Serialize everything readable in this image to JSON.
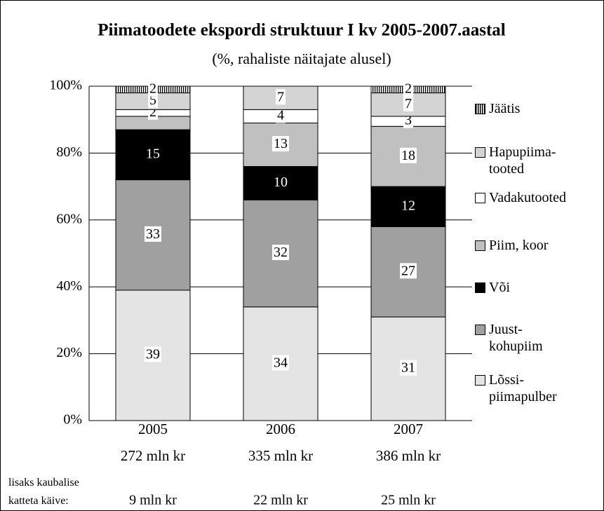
{
  "chart_data": {
    "type": "stacked-bar",
    "title": "Piimatoodete ekspordi struktuur I kv 2005-2007.aastal",
    "subtitle": "(%, rahaliste näitajate alusel)",
    "categories": [
      "2005",
      "2006",
      "2007"
    ],
    "category_sublabels": [
      "272 mln kr",
      "335 mln kr",
      "386 mln kr"
    ],
    "extra_label": "lisaks kaubalise\nkatteta käive:",
    "extra_values": [
      "9 mln kr",
      "22 mln kr",
      "25 mln kr"
    ],
    "ylim": [
      0,
      100
    ],
    "yticks": [
      {
        "value": 0,
        "label": "0%"
      },
      {
        "value": 20,
        "label": "20%"
      },
      {
        "value": 40,
        "label": "40%"
      },
      {
        "value": 60,
        "label": "60%"
      },
      {
        "value": 80,
        "label": "80%"
      },
      {
        "value": 100,
        "label": "100%"
      }
    ],
    "grid": true,
    "series": [
      {
        "name": "Lõssi-\npiimapulber",
        "color": "#e4e4e4",
        "values": [
          39,
          34,
          31
        ]
      },
      {
        "name": "Juust-\nkohupiim",
        "color": "#a0a0a0",
        "values": [
          33,
          32,
          27
        ]
      },
      {
        "name": "Või",
        "color": "#000000",
        "values": [
          15,
          10,
          12
        ]
      },
      {
        "name": "Piim, koor",
        "color": "#c0c0c0",
        "values": [
          4,
          13,
          18
        ],
        "value_labels": [
          null,
          "13",
          "18"
        ]
      },
      {
        "name": "Vadakutooted",
        "color": "#ffffff",
        "values": [
          2,
          4,
          3
        ]
      },
      {
        "name": "Hapupiima-\ntooted",
        "color": "#d4d4d4",
        "values": [
          5,
          7,
          7
        ]
      },
      {
        "name": "Jäätis",
        "color": "#ffffff",
        "pattern": "vertical-stripes",
        "values": [
          2,
          null,
          2
        ]
      }
    ]
  }
}
